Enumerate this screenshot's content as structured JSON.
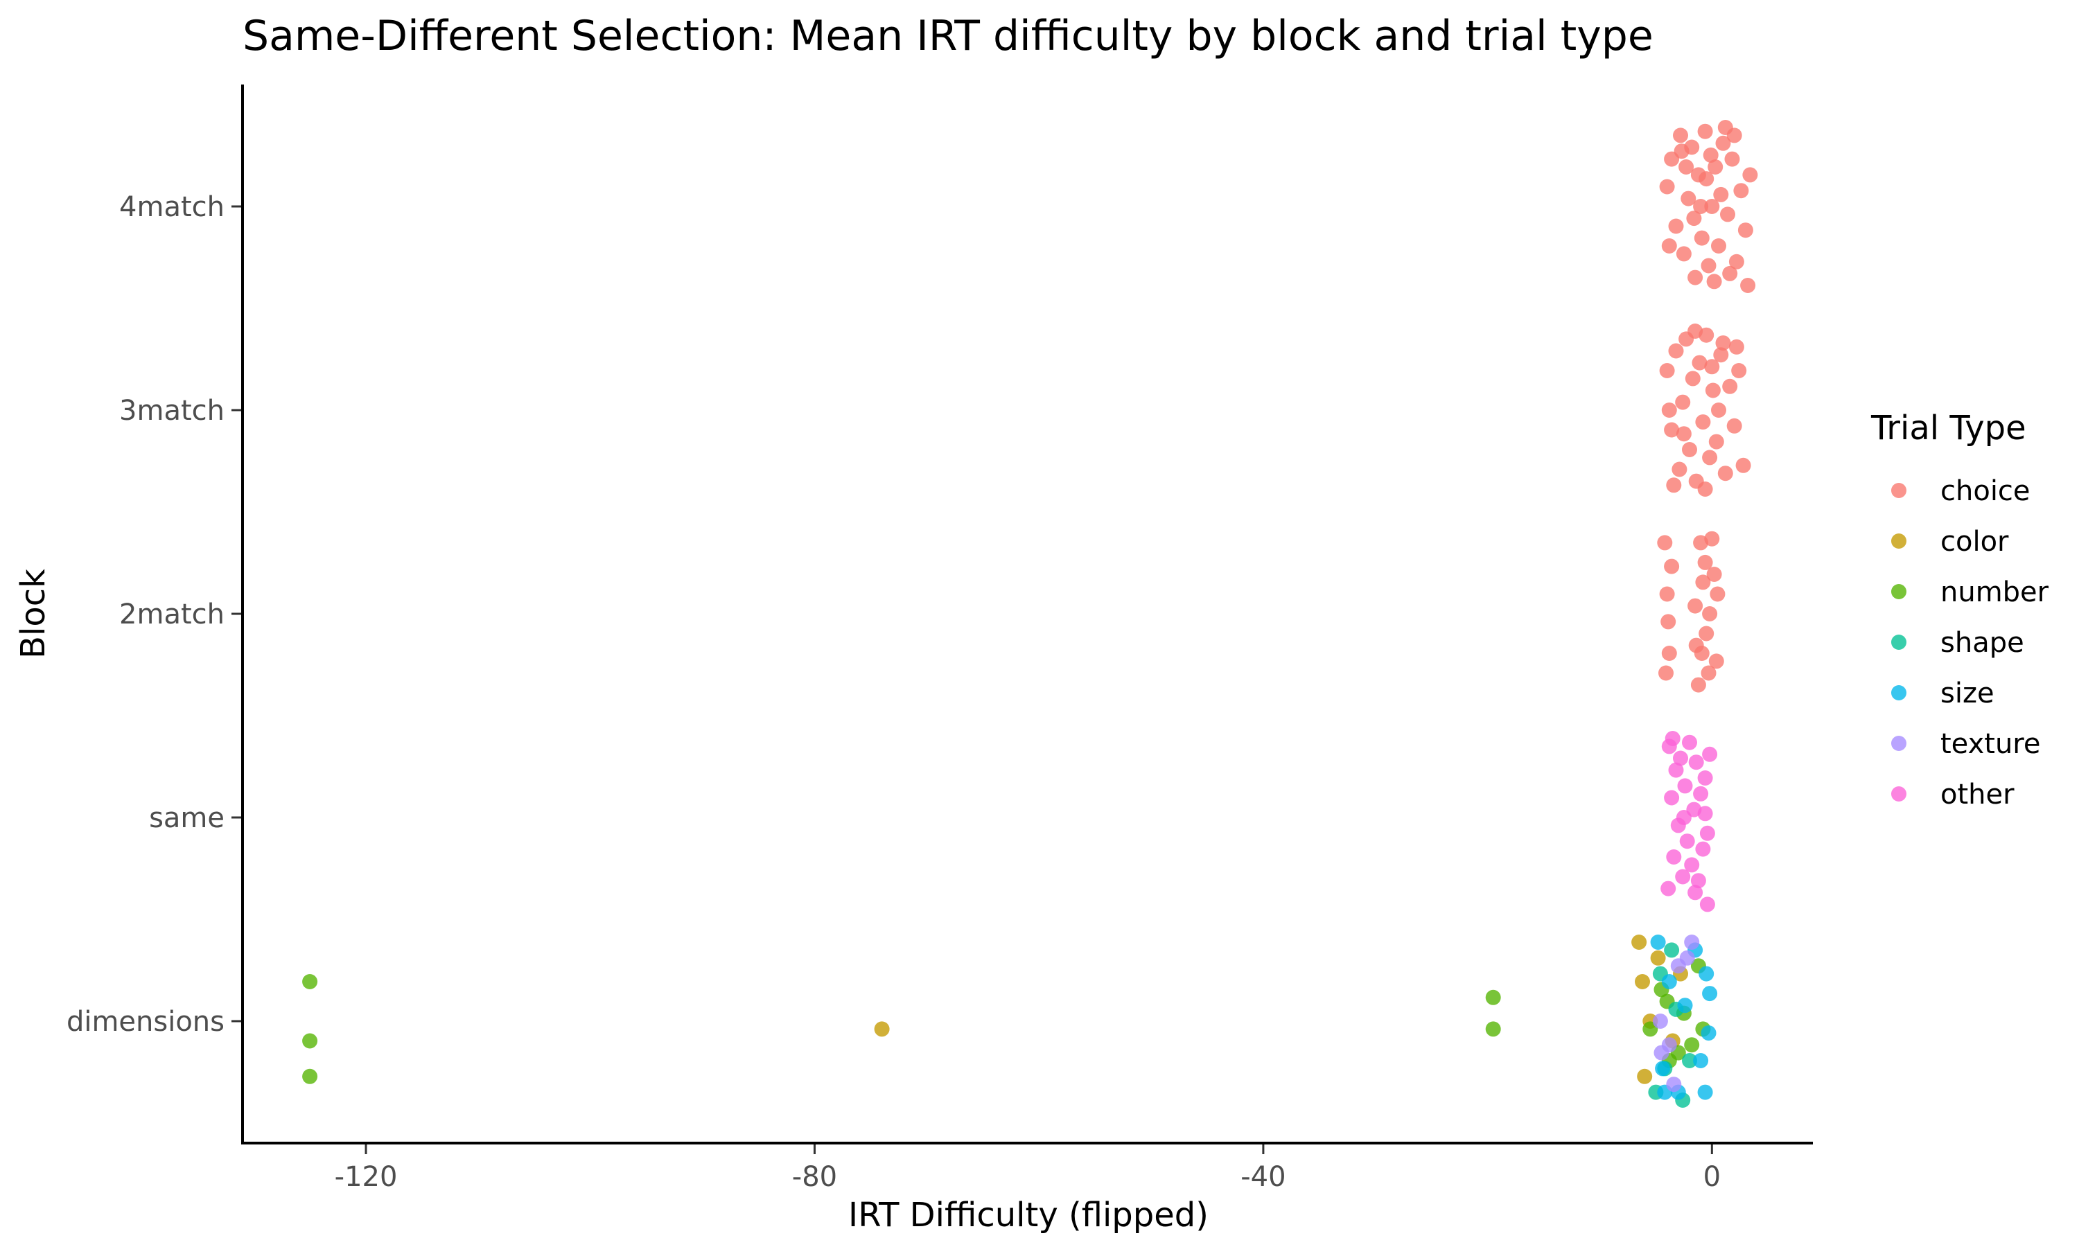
{
  "chart_data": {
    "type": "scatter",
    "title": "Same-Different Selection: Mean IRT difficulty by block and trial type",
    "xlabel": "IRT Difficulty (flipped)",
    "ylabel": "Block",
    "xlim": [
      -131,
      9
    ],
    "x_ticks": [
      -120,
      -80,
      -40,
      0
    ],
    "x_tick_labels": [
      "-120",
      "-80",
      "-40",
      "0"
    ],
    "categories": [
      "dimensions",
      "same",
      "2match",
      "3match",
      "4match"
    ],
    "grid": false,
    "legend": {
      "title": "Trial Type",
      "position": "right",
      "entries": [
        "choice",
        "color",
        "number",
        "shape",
        "size",
        "texture",
        "other"
      ]
    },
    "series": [
      {
        "name": "choice",
        "color": "#F8766D",
        "points": [
          [
            "4match",
            -4.0,
            0.05
          ],
          [
            "4match",
            -3.6,
            0.12
          ],
          [
            "4match",
            -3.2,
            -0.05
          ],
          [
            "4match",
            -2.8,
            0.18
          ],
          [
            "4match",
            -2.5,
            -0.12
          ],
          [
            "4match",
            -2.1,
            0.02
          ],
          [
            "4match",
            -1.8,
            0.15
          ],
          [
            "4match",
            -1.5,
            -0.18
          ],
          [
            "4match",
            -1.2,
            0.08
          ],
          [
            "4match",
            -0.9,
            -0.08
          ],
          [
            "4match",
            -0.6,
            0.19
          ],
          [
            "4match",
            -0.3,
            -0.15
          ],
          [
            "4match",
            0.0,
            0.0
          ],
          [
            "4match",
            0.3,
            0.1
          ],
          [
            "4match",
            0.6,
            -0.1
          ],
          [
            "4match",
            1.0,
            0.16
          ],
          [
            "4match",
            1.4,
            -0.02
          ],
          [
            "4match",
            1.8,
            0.12
          ],
          [
            "4match",
            2.2,
            -0.14
          ],
          [
            "4match",
            2.6,
            0.04
          ],
          [
            "4match",
            3.0,
            -0.06
          ],
          [
            "4match",
            3.4,
            0.08
          ],
          [
            "4match",
            3.2,
            -0.2
          ],
          [
            "4match",
            -3.8,
            -0.1
          ],
          [
            "4match",
            -2.3,
            0.1
          ],
          [
            "4match",
            -1.0,
            0.0
          ],
          [
            "4match",
            0.8,
            0.03
          ],
          [
            "4match",
            1.6,
            -0.17
          ],
          [
            "4match",
            -0.5,
            0.07
          ],
          [
            "4match",
            2.0,
            0.18
          ],
          [
            "4match",
            -1.6,
            -0.03
          ],
          [
            "4match",
            0.2,
            -0.19
          ],
          [
            "4match",
            -2.7,
            0.14
          ],
          [
            "4match",
            1.2,
            0.2
          ],
          [
            "4match",
            -0.1,
            0.13
          ],
          [
            "3match",
            -4.0,
            0.1
          ],
          [
            "3match",
            -3.6,
            -0.05
          ],
          [
            "3match",
            -3.2,
            0.15
          ],
          [
            "3match",
            -2.9,
            -0.15
          ],
          [
            "3match",
            -2.6,
            0.02
          ],
          [
            "3match",
            -2.3,
            0.18
          ],
          [
            "3match",
            -2.0,
            -0.1
          ],
          [
            "3match",
            -1.7,
            0.08
          ],
          [
            "3match",
            -1.4,
            -0.18
          ],
          [
            "3match",
            -1.1,
            0.12
          ],
          [
            "3match",
            -0.8,
            -0.03
          ],
          [
            "3match",
            -0.5,
            0.19
          ],
          [
            "3match",
            -0.2,
            -0.12
          ],
          [
            "3match",
            0.1,
            0.05
          ],
          [
            "3match",
            0.4,
            -0.08
          ],
          [
            "3match",
            0.8,
            0.14
          ],
          [
            "3match",
            1.2,
            -0.16
          ],
          [
            "3match",
            1.6,
            0.06
          ],
          [
            "3match",
            2.0,
            -0.04
          ],
          [
            "3match",
            2.4,
            0.1
          ],
          [
            "3match",
            2.8,
            -0.14
          ],
          [
            "3match",
            -3.4,
            -0.19
          ],
          [
            "3match",
            -1.5,
            0.2
          ],
          [
            "3match",
            0.6,
            0.0
          ],
          [
            "3match",
            -2.5,
            -0.06
          ],
          [
            "3match",
            1.0,
            0.17
          ],
          [
            "3match",
            -0.6,
            -0.2
          ],
          [
            "3match",
            2.2,
            0.16
          ],
          [
            "3match",
            -3.8,
            0.0
          ],
          [
            "3match",
            0.0,
            0.11
          ],
          [
            "2match",
            -4.2,
            0.18
          ],
          [
            "2match",
            -4.0,
            0.05
          ],
          [
            "2match",
            -3.8,
            -0.1
          ],
          [
            "2match",
            -4.1,
            -0.15
          ],
          [
            "2match",
            -3.6,
            0.12
          ],
          [
            "2match",
            -3.9,
            -0.02
          ],
          [
            "2match",
            -1.0,
            0.18
          ],
          [
            "2match",
            -0.8,
            0.08
          ],
          [
            "2match",
            -0.5,
            -0.05
          ],
          [
            "2match",
            -0.3,
            -0.15
          ],
          [
            "2match",
            -1.2,
            -0.18
          ],
          [
            "2match",
            -0.6,
            0.13
          ],
          [
            "2match",
            -0.9,
            -0.1
          ],
          [
            "2match",
            0.2,
            0.1
          ],
          [
            "2match",
            0.4,
            -0.12
          ],
          [
            "2match",
            -1.5,
            0.02
          ],
          [
            "2match",
            0.0,
            0.19
          ],
          [
            "2match",
            -0.2,
            0.0
          ],
          [
            "2match",
            0.5,
            0.05
          ],
          [
            "2match",
            -1.4,
            -0.08
          ]
        ]
      },
      {
        "name": "color",
        "color": "#C49A00",
        "points": [
          [
            "dimensions",
            -74,
            -0.02
          ],
          [
            "dimensions",
            -6.5,
            0.2
          ],
          [
            "dimensions",
            -6.2,
            0.1
          ],
          [
            "dimensions",
            -6.0,
            -0.14
          ],
          [
            "dimensions",
            -5.5,
            0.0
          ],
          [
            "dimensions",
            -4.8,
            0.16
          ],
          [
            "dimensions",
            -3.5,
            -0.05
          ],
          [
            "dimensions",
            -2.8,
            0.12
          ]
        ]
      },
      {
        "name": "number",
        "color": "#53B400",
        "points": [
          [
            "dimensions",
            -125,
            0.1
          ],
          [
            "dimensions",
            -125,
            -0.05
          ],
          [
            "dimensions",
            -125,
            -0.14
          ],
          [
            "dimensions",
            -19.5,
            0.06
          ],
          [
            "dimensions",
            -19.5,
            -0.02
          ],
          [
            "dimensions",
            -5.5,
            -0.02
          ],
          [
            "dimensions",
            -4.5,
            0.08
          ],
          [
            "dimensions",
            -3.8,
            -0.1
          ],
          [
            "dimensions",
            -2.5,
            0.02
          ],
          [
            "dimensions",
            -1.8,
            -0.06
          ],
          [
            "dimensions",
            -1.2,
            0.14
          ],
          [
            "dimensions",
            -0.8,
            -0.02
          ],
          [
            "dimensions",
            -3.0,
            -0.08
          ],
          [
            "dimensions",
            -4.0,
            0.05
          ]
        ]
      },
      {
        "name": "shape",
        "color": "#00C094",
        "points": [
          [
            "dimensions",
            -5.0,
            -0.18
          ],
          [
            "dimensions",
            -4.2,
            -0.12
          ],
          [
            "dimensions",
            -3.2,
            0.03
          ],
          [
            "dimensions",
            -2.0,
            -0.1
          ],
          [
            "dimensions",
            -4.6,
            0.12
          ],
          [
            "dimensions",
            -2.6,
            -0.2
          ],
          [
            "dimensions",
            -3.6,
            0.18
          ]
        ]
      },
      {
        "name": "size",
        "color": "#00B6EB",
        "points": [
          [
            "dimensions",
            -4.8,
            0.2
          ],
          [
            "dimensions",
            -4.4,
            -0.12
          ],
          [
            "dimensions",
            -3.8,
            0.1
          ],
          [
            "dimensions",
            -3.0,
            -0.18
          ],
          [
            "dimensions",
            -2.4,
            0.04
          ],
          [
            "dimensions",
            -1.5,
            0.18
          ],
          [
            "dimensions",
            -1.0,
            -0.1
          ],
          [
            "dimensions",
            -0.5,
            0.12
          ],
          [
            "dimensions",
            -0.3,
            -0.03
          ],
          [
            "dimensions",
            -0.6,
            -0.18
          ],
          [
            "dimensions",
            -0.2,
            0.07
          ],
          [
            "dimensions",
            -4.2,
            -0.18
          ]
        ]
      },
      {
        "name": "texture",
        "color": "#A58AFF",
        "points": [
          [
            "dimensions",
            -4.5,
            -0.08
          ],
          [
            "dimensions",
            -3.4,
            -0.16
          ],
          [
            "dimensions",
            -3.8,
            -0.06
          ],
          [
            "dimensions",
            -2.2,
            0.16
          ],
          [
            "dimensions",
            -1.8,
            0.2
          ],
          [
            "dimensions",
            -3.0,
            0.14
          ],
          [
            "dimensions",
            -4.6,
            0.0
          ]
        ]
      },
      {
        "name": "other",
        "color": "#FB61D7",
        "points": [
          [
            "same",
            -3.8,
            0.18
          ],
          [
            "same",
            -3.6,
            0.05
          ],
          [
            "same",
            -3.4,
            -0.1
          ],
          [
            "same",
            -3.9,
            -0.18
          ],
          [
            "same",
            -3.2,
            0.12
          ],
          [
            "same",
            -3.0,
            -0.02
          ],
          [
            "same",
            -2.8,
            0.15
          ],
          [
            "same",
            -2.6,
            -0.15
          ],
          [
            "same",
            -2.4,
            0.08
          ],
          [
            "same",
            -2.2,
            -0.06
          ],
          [
            "same",
            -2.0,
            0.19
          ],
          [
            "same",
            -1.8,
            -0.12
          ],
          [
            "same",
            -1.6,
            0.02
          ],
          [
            "same",
            -1.4,
            0.14
          ],
          [
            "same",
            -1.2,
            -0.16
          ],
          [
            "same",
            -1.0,
            0.06
          ],
          [
            "same",
            -0.8,
            -0.08
          ],
          [
            "same",
            -0.6,
            0.1
          ],
          [
            "same",
            -0.4,
            -0.04
          ],
          [
            "same",
            -0.2,
            0.16
          ],
          [
            "same",
            -0.4,
            -0.22
          ],
          [
            "same",
            -0.6,
            0.01
          ],
          [
            "same",
            -1.5,
            -0.19
          ],
          [
            "same",
            -2.5,
            0.0
          ],
          [
            "same",
            -3.5,
            0.2
          ]
        ]
      }
    ]
  }
}
